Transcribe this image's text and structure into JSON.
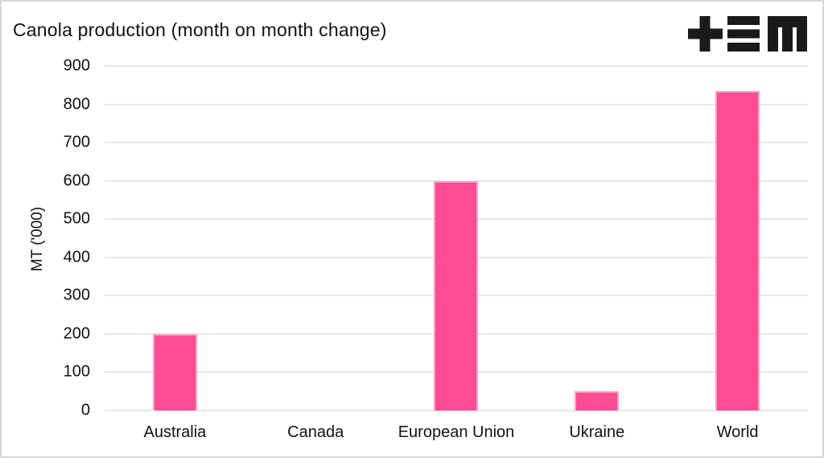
{
  "figure": {
    "title": "Canola production (month on month change)",
    "logo_name": "tem-logo",
    "border_color": "#d8d8d8",
    "background_color": "#ffffff",
    "logo_color": "#1a1a1a",
    "text_color": "#121212",
    "gridline_color": "#e7e7e7"
  },
  "chart_data": {
    "type": "bar",
    "title": "Canola production (month on month change)",
    "categories": [
      "Australia",
      "Canada",
      "European Union",
      "Ukraine",
      "World"
    ],
    "values": [
      200,
      0,
      600,
      50,
      835
    ],
    "xlabel": "",
    "ylabel": "MT ('000)",
    "ylim": [
      0,
      900
    ],
    "yticks": [
      0,
      100,
      200,
      300,
      400,
      500,
      600,
      700,
      800,
      900
    ],
    "grid": "horizontal",
    "legend": "none",
    "bar_color": "#fc4c93",
    "bar_edge_color": "#fba0c5"
  }
}
